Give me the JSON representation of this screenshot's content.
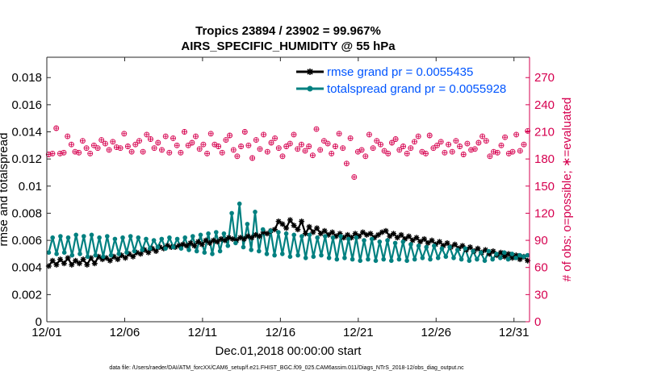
{
  "chart_data": {
    "type": "line",
    "title_line1": "Tropics 23894 / 23902 = 99.967%",
    "title_line2": "AIRS_SPECIFIC_HUMIDITY @ 55 hPa",
    "xlabel": "Dec.01,2018 00:00:00 start",
    "ylabel_left": "rmse and totalspread",
    "ylabel_right": "# of obs: o=possible; ∗=evaluated",
    "footer": "data file: /Users/raeder/DAI/ATM_forcXX/CAM6_setup/f.e21.FHIST_BGC.f09_025.CAM6assim.011/Diags_NTrS_2018-12/obs_diag_output.nc",
    "x_range": [
      1,
      32
    ],
    "x_ticks": [
      1,
      6,
      11,
      16,
      21,
      26,
      31
    ],
    "x_tick_labels": [
      "12/01",
      "12/06",
      "12/11",
      "12/16",
      "12/21",
      "12/26",
      "12/31"
    ],
    "ylim_left": [
      0,
      0.0195
    ],
    "yticks_left": [
      0,
      0.002,
      0.004,
      0.006,
      0.008,
      0.01,
      0.012,
      0.014,
      0.016,
      0.018
    ],
    "ytick_labels_left": [
      "0",
      "0.002",
      "0.004",
      "0.006",
      "0.008",
      "0.01",
      "0.012",
      "0.014",
      "0.016",
      "0.018"
    ],
    "ylim_right": [
      0,
      292.5
    ],
    "yticks_right": [
      0,
      30,
      60,
      90,
      120,
      150,
      180,
      210,
      240,
      270
    ],
    "ytick_labels_right": [
      "0",
      "30",
      "60",
      "90",
      "120",
      "150",
      "180",
      "210",
      "240",
      "270"
    ],
    "legend_position": "top-right",
    "colors": {
      "rmse": "#000000",
      "spread": "#008080",
      "obs": "#d6004f",
      "legend_text": "#0055ff",
      "right_axis": "#d6004f"
    },
    "series": [
      {
        "name": "rmse grand pr = 0.0055435",
        "color": "#000000",
        "marker": "asterisk",
        "values": [
          0.0041,
          0.0045,
          0.0042,
          0.0046,
          0.0043,
          0.0047,
          0.0042,
          0.0045,
          0.0043,
          0.0046,
          0.0042,
          0.0047,
          0.0043,
          0.0048,
          0.0046,
          0.0047,
          0.0045,
          0.0048,
          0.0046,
          0.0049,
          0.0047,
          0.005,
          0.0048,
          0.0051,
          0.005,
          0.0053,
          0.0051,
          0.0054,
          0.0052,
          0.0055,
          0.0054,
          0.0056,
          0.0055,
          0.0055,
          0.0056,
          0.0057,
          0.0056,
          0.0058,
          0.0056,
          0.0059,
          0.0057,
          0.006,
          0.0058,
          0.006,
          0.0059,
          0.0061,
          0.006,
          0.0062,
          0.0061,
          0.006,
          0.0062,
          0.0061,
          0.0063,
          0.0062,
          0.0064,
          0.0063,
          0.0066,
          0.0065,
          0.0067,
          0.0068,
          0.0074,
          0.0072,
          0.0069,
          0.0075,
          0.0071,
          0.0068,
          0.0074,
          0.0065,
          0.007,
          0.0066,
          0.0069,
          0.0065,
          0.0067,
          0.0064,
          0.0066,
          0.0063,
          0.0065,
          0.0062,
          0.0064,
          0.0062,
          0.0065,
          0.0063,
          0.0066,
          0.0064,
          0.0065,
          0.0062,
          0.0064,
          0.0066,
          0.0067,
          0.0063,
          0.0065,
          0.0062,
          0.0064,
          0.0061,
          0.0063,
          0.006,
          0.0062,
          0.0059,
          0.0061,
          0.0058,
          0.006,
          0.0057,
          0.0059,
          0.0056,
          0.0058,
          0.0055,
          0.0057,
          0.0054,
          0.0056,
          0.0053,
          0.0055,
          0.0052,
          0.0054,
          0.0051,
          0.0053,
          0.005,
          0.0052,
          0.0049,
          0.0051,
          0.0048,
          0.005,
          0.0047,
          0.0049,
          0.0046,
          0.0048,
          0.0045
        ]
      },
      {
        "name": "totalspread grand pr = 0.0055928",
        "color": "#008080",
        "marker": "circle",
        "values": [
          0.0051,
          0.0062,
          0.005,
          0.0063,
          0.0051,
          0.0062,
          0.0049,
          0.0064,
          0.005,
          0.0063,
          0.0048,
          0.0064,
          0.0049,
          0.0062,
          0.0048,
          0.0063,
          0.0049,
          0.0061,
          0.005,
          0.0062,
          0.0051,
          0.0063,
          0.0052,
          0.0062,
          0.0053,
          0.0061,
          0.0054,
          0.006,
          0.0055,
          0.0061,
          0.0054,
          0.0062,
          0.0055,
          0.0061,
          0.0054,
          0.0062,
          0.0053,
          0.0063,
          0.0052,
          0.0064,
          0.0051,
          0.0065,
          0.005,
          0.0066,
          0.0052,
          0.0065,
          0.0056,
          0.008,
          0.0058,
          0.0087,
          0.0055,
          0.0072,
          0.0053,
          0.0081,
          0.0052,
          0.0068,
          0.005,
          0.0067,
          0.0049,
          0.0066,
          0.005,
          0.0065,
          0.0048,
          0.0064,
          0.0049,
          0.0063,
          0.0047,
          0.0064,
          0.0048,
          0.0062,
          0.0049,
          0.0063,
          0.0047,
          0.0062,
          0.0046,
          0.0063,
          0.0047,
          0.0061,
          0.0046,
          0.0062,
          0.0045,
          0.006,
          0.0046,
          0.0061,
          0.0045,
          0.0059,
          0.0046,
          0.006,
          0.0045,
          0.0058,
          0.0046,
          0.0059,
          0.0045,
          0.0057,
          0.0046,
          0.0056,
          0.0047,
          0.0055,
          0.0046,
          0.0056,
          0.0047,
          0.0054,
          0.0048,
          0.0055,
          0.0047,
          0.0053,
          0.0046,
          0.0054,
          0.0045,
          0.0052,
          0.0046,
          0.0051,
          0.0045,
          0.0052,
          0.0046,
          0.005,
          0.0047,
          0.0051,
          0.0046,
          0.005,
          0.0047,
          0.0049,
          0.0048,
          0.0049
        ]
      }
    ],
    "obs_counts": [
      185,
      186,
      214,
      186,
      187,
      205,
      196,
      188,
      187,
      200,
      192,
      186,
      195,
      192,
      201,
      197,
      190,
      199,
      193,
      192,
      208,
      194,
      188,
      196,
      200,
      188,
      207,
      202,
      192,
      198,
      190,
      205,
      187,
      203,
      195,
      187,
      210,
      195,
      198,
      205,
      191,
      196,
      186,
      208,
      196,
      194,
      187,
      201,
      206,
      190,
      183,
      194,
      210,
      195,
      181,
      201,
      191,
      207,
      188,
      198,
      203,
      192,
      183,
      194,
      197,
      207,
      191,
      196,
      189,
      194,
      184,
      213,
      190,
      200,
      197,
      186,
      194,
      208,
      192,
      175,
      203,
      160,
      188,
      190,
      183,
      207,
      192,
      200,
      196,
      189,
      186,
      198,
      202,
      190,
      194,
      186,
      192,
      199,
      205,
      188,
      186,
      206,
      192,
      195,
      199,
      187,
      196,
      188,
      200,
      194,
      185,
      197,
      190,
      191,
      198,
      205,
      200,
      183,
      188,
      187,
      195,
      204,
      186,
      188,
      207,
      189,
      196,
      211
    ]
  }
}
